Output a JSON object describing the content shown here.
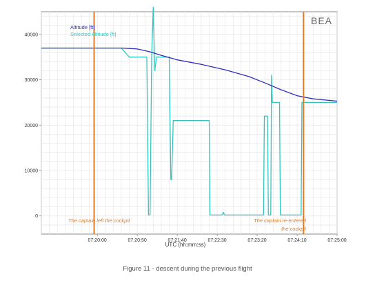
{
  "chart_data": {
    "type": "line",
    "xlabel": "UTC (hh:mm:ss)",
    "ylabel": "",
    "xlim_seconds": [
      1130,
      1500
    ],
    "ylim": [
      -4000,
      45000
    ],
    "x_ticks": [
      {
        "t": 1200,
        "label": "07:20:00"
      },
      {
        "t": 1250,
        "label": "07:20:50"
      },
      {
        "t": 1300,
        "label": "07:21:40"
      },
      {
        "t": 1350,
        "label": "07:22:30"
      },
      {
        "t": 1400,
        "label": "07:23:20"
      },
      {
        "t": 1450,
        "label": "07:24:10"
      },
      {
        "t": 1500,
        "label": "07:25:00"
      }
    ],
    "y_ticks": [
      0,
      10000,
      20000,
      30000,
      40000
    ],
    "grid": true,
    "legend_position": "top-left",
    "series": [
      {
        "name": "Altitude [ft]",
        "color": "#2e2ebf",
        "x_seconds": [
          1130,
          1180,
          1230,
          1250,
          1265,
          1280,
          1300,
          1330,
          1360,
          1390,
          1410,
          1430,
          1450,
          1470,
          1500
        ],
        "values": [
          37000,
          37000,
          37000,
          36800,
          36200,
          35400,
          34400,
          33400,
          32200,
          30700,
          29300,
          27800,
          26500,
          25800,
          25300
        ]
      },
      {
        "name": "Selected Altitude [ft]",
        "color": "#33c4c0",
        "x_seconds": [
          1130,
          1230,
          1240,
          1260,
          1262,
          1264,
          1266,
          1268,
          1270,
          1272,
          1274,
          1276,
          1278,
          1280,
          1282,
          1290,
          1292,
          1293,
          1295,
          1340,
          1341,
          1356,
          1358,
          1359,
          1360,
          1362,
          1408,
          1409,
          1413,
          1414,
          1417,
          1418,
          1419,
          1420,
          1428,
          1429,
          1455,
          1456,
          1500
        ],
        "values": [
          37000,
          37000,
          35000,
          35000,
          35000,
          200,
          200,
          35000,
          46000,
          32000,
          35000,
          35000,
          35000,
          35000,
          35000,
          35000,
          8000,
          8000,
          21000,
          21000,
          200,
          200,
          800,
          200,
          200,
          200,
          200,
          22000,
          22000,
          200,
          200,
          31000,
          25000,
          25000,
          25000,
          200,
          200,
          25000,
          25000
        ]
      }
    ],
    "annotations": [
      {
        "t": 1196,
        "label": "The captain left the cockpit",
        "color": "#e07b28"
      },
      {
        "t": 1458,
        "label_lines": [
          "The captain re-entered",
          "the cockpit"
        ],
        "color": "#e07b28"
      }
    ]
  },
  "logo_text": "BEA",
  "caption": "Figure 11 - descent during the previous flight"
}
